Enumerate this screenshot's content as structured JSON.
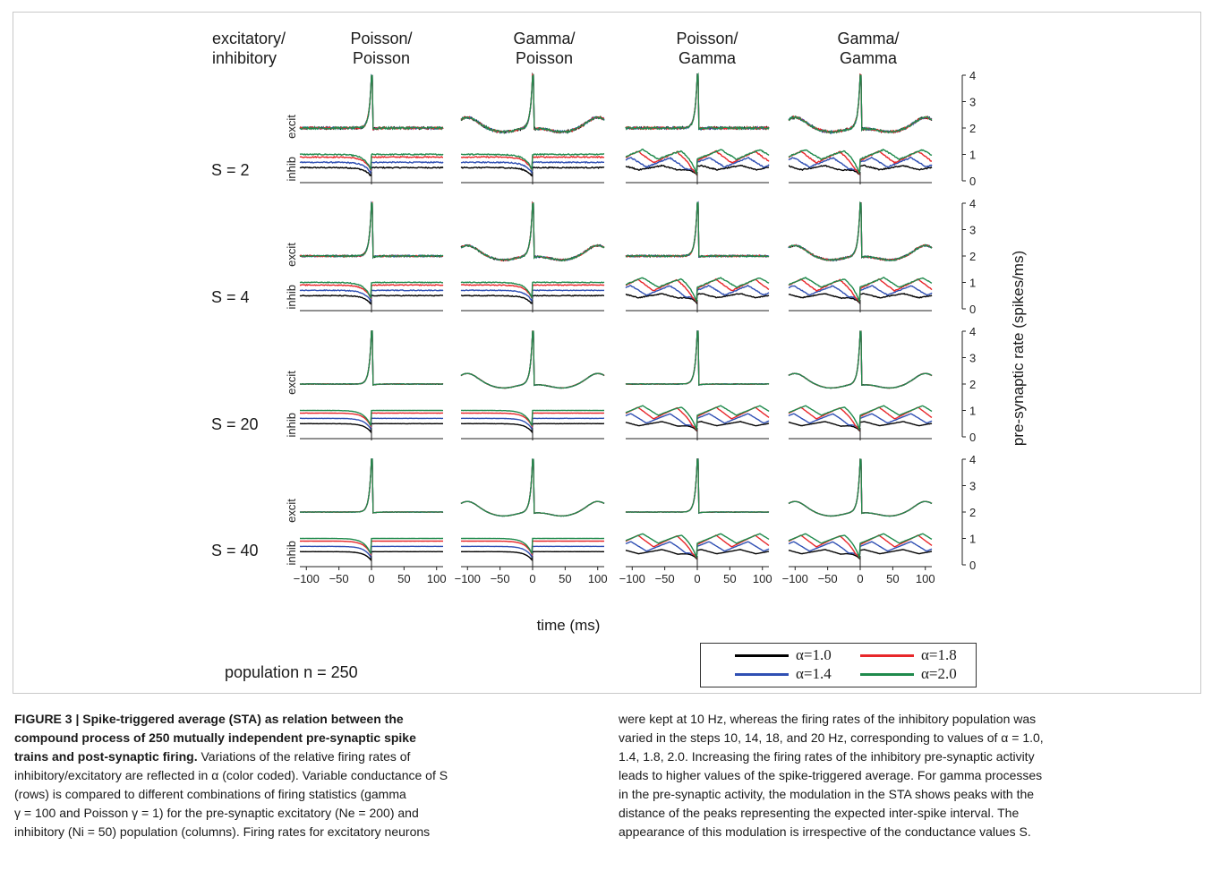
{
  "figure": {
    "corner_label": [
      "excitatory/",
      "inhibitory"
    ],
    "columns": [
      [
        "Poisson/",
        "Poisson"
      ],
      [
        "Gamma/",
        "Poisson"
      ],
      [
        "Poisson/",
        "Gamma"
      ],
      [
        "Gamma/",
        "Gamma"
      ]
    ],
    "rows": [
      "S = 2",
      "S = 4",
      "S = 20",
      "S = 40"
    ],
    "panel_labels": {
      "excitatory": "excit",
      "inhibitory": "inhib"
    },
    "xlabel": "time (ms)",
    "ylabel": "pre-synaptic rate (spikes/ms)",
    "x_ticks": [
      "−100",
      "−50",
      "0",
      "50",
      "100"
    ],
    "y_ticks": [
      "0",
      "1",
      "2",
      "3",
      "4"
    ],
    "population_label": "population n = 250",
    "legend": [
      {
        "label": "α=1.0",
        "color": "#000000"
      },
      {
        "label": "α=1.8",
        "color": "#e8272a"
      },
      {
        "label": "α=1.4",
        "color": "#2f4fb3"
      },
      {
        "label": "α=2.0",
        "color": "#1f8a4c"
      }
    ]
  },
  "chart_data": {
    "type": "line",
    "xlabel": "time (ms)",
    "ylabel": "pre-synaptic rate (spikes/ms)",
    "xlim": [
      -110,
      110
    ],
    "ylim": [
      0,
      4
    ],
    "x_ticks": [
      -100,
      -50,
      0,
      50,
      100
    ],
    "y_ticks": [
      0,
      1,
      2,
      3,
      4
    ],
    "series_labels": [
      "α=1.0",
      "α=1.4",
      "α=1.8",
      "α=2.0"
    ],
    "excitatory_baseline": 2.0,
    "excitatory_peak": 4.0,
    "gamma_excitatory_side_peak": 2.4,
    "inhibitory_baselines": {
      "α=1.0": 0.5,
      "α=1.4": 0.7,
      "α=1.8": 0.9,
      "α=2.0": 1.0
    },
    "gamma_inhibitory_peak_period_ms": 60,
    "noise_level_by_row": [
      0.07,
      0.05,
      0.015,
      0.01
    ]
  },
  "caption": {
    "title_lines": [
      "FIGURE 3 | Spike-triggered average (STA) as relation between the",
      "compound process of 250 mutually independent pre-synaptic spike",
      "trains and post-synaptic firing."
    ],
    "left_lines": [
      " Variations of the relative firing rates of",
      "inhibitory/excitatory are reflected in α (color coded). Variable conductance of S",
      "(rows) is compared to different combinations of firing statistics (gamma",
      "γ = 100 and Poisson γ = 1) for the pre-synaptic excitatory (Ne = 200) and",
      "inhibitory (Ni = 50) population (columns). Firing rates for excitatory neurons"
    ],
    "right_lines": [
      "were kept at 10 Hz, whereas the firing rates of the inhibitory population was",
      "varied in the steps 10, 14, 18, and 20 Hz, corresponding to values of α = 1.0,",
      "1.4, 1.8, 2.0. Increasing the firing rates of the inhibitory pre-synaptic activity",
      "leads to higher values of the spike-triggered average. For gamma processes",
      "in the pre-synaptic activity, the modulation in the STA shows peaks with the",
      "distance of the peaks representing the expected inter-spike interval. The",
      "appearance of this modulation is irrespective of the conductance values S."
    ]
  }
}
